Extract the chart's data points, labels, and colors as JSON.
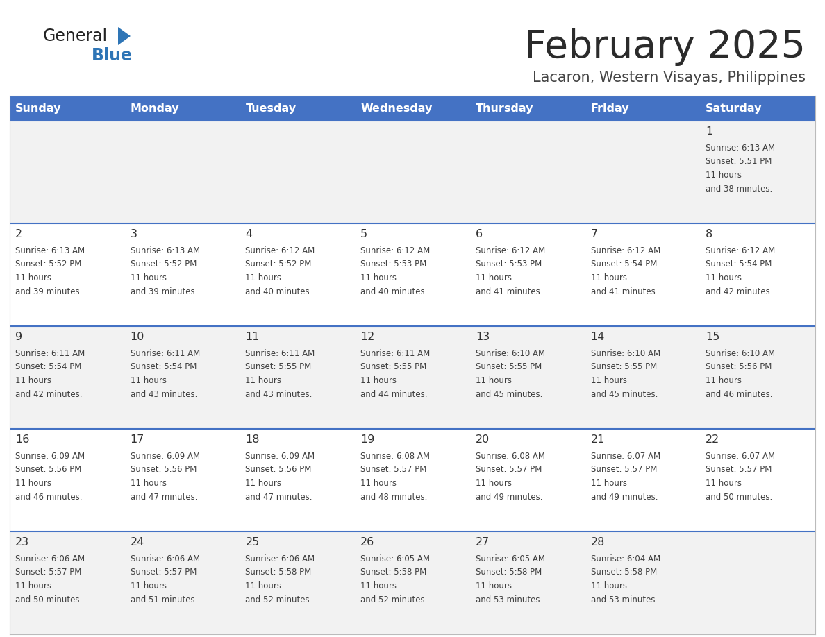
{
  "title": "February 2025",
  "subtitle": "Lacaron, Western Visayas, Philippines",
  "header_bg": "#4472C4",
  "header_text_color": "#FFFFFF",
  "day_names": [
    "Sunday",
    "Monday",
    "Tuesday",
    "Wednesday",
    "Thursday",
    "Friday",
    "Saturday"
  ],
  "row_bg_odd": "#F2F2F2",
  "row_bg_even": "#FFFFFF",
  "row_separator_color": "#4472C4",
  "cell_text_color": "#404040",
  "day_num_color": "#333333",
  "logo_general_color": "#222222",
  "logo_blue_color": "#2E75B6",
  "logo_triangle_color": "#2E75B6",
  "border_color": "#BBBBBB",
  "calendar": [
    [
      {
        "day": null
      },
      {
        "day": null
      },
      {
        "day": null
      },
      {
        "day": null
      },
      {
        "day": null
      },
      {
        "day": null
      },
      {
        "day": 1,
        "sunrise": "6:13 AM",
        "sunset": "5:51 PM",
        "daylight": "11 hours and 38 minutes."
      }
    ],
    [
      {
        "day": 2,
        "sunrise": "6:13 AM",
        "sunset": "5:52 PM",
        "daylight": "11 hours and 39 minutes."
      },
      {
        "day": 3,
        "sunrise": "6:13 AM",
        "sunset": "5:52 PM",
        "daylight": "11 hours and 39 minutes."
      },
      {
        "day": 4,
        "sunrise": "6:12 AM",
        "sunset": "5:52 PM",
        "daylight": "11 hours and 40 minutes."
      },
      {
        "day": 5,
        "sunrise": "6:12 AM",
        "sunset": "5:53 PM",
        "daylight": "11 hours and 40 minutes."
      },
      {
        "day": 6,
        "sunrise": "6:12 AM",
        "sunset": "5:53 PM",
        "daylight": "11 hours and 41 minutes."
      },
      {
        "day": 7,
        "sunrise": "6:12 AM",
        "sunset": "5:54 PM",
        "daylight": "11 hours and 41 minutes."
      },
      {
        "day": 8,
        "sunrise": "6:12 AM",
        "sunset": "5:54 PM",
        "daylight": "11 hours and 42 minutes."
      }
    ],
    [
      {
        "day": 9,
        "sunrise": "6:11 AM",
        "sunset": "5:54 PM",
        "daylight": "11 hours and 42 minutes."
      },
      {
        "day": 10,
        "sunrise": "6:11 AM",
        "sunset": "5:54 PM",
        "daylight": "11 hours and 43 minutes."
      },
      {
        "day": 11,
        "sunrise": "6:11 AM",
        "sunset": "5:55 PM",
        "daylight": "11 hours and 43 minutes."
      },
      {
        "day": 12,
        "sunrise": "6:11 AM",
        "sunset": "5:55 PM",
        "daylight": "11 hours and 44 minutes."
      },
      {
        "day": 13,
        "sunrise": "6:10 AM",
        "sunset": "5:55 PM",
        "daylight": "11 hours and 45 minutes."
      },
      {
        "day": 14,
        "sunrise": "6:10 AM",
        "sunset": "5:55 PM",
        "daylight": "11 hours and 45 minutes."
      },
      {
        "day": 15,
        "sunrise": "6:10 AM",
        "sunset": "5:56 PM",
        "daylight": "11 hours and 46 minutes."
      }
    ],
    [
      {
        "day": 16,
        "sunrise": "6:09 AM",
        "sunset": "5:56 PM",
        "daylight": "11 hours and 46 minutes."
      },
      {
        "day": 17,
        "sunrise": "6:09 AM",
        "sunset": "5:56 PM",
        "daylight": "11 hours and 47 minutes."
      },
      {
        "day": 18,
        "sunrise": "6:09 AM",
        "sunset": "5:56 PM",
        "daylight": "11 hours and 47 minutes."
      },
      {
        "day": 19,
        "sunrise": "6:08 AM",
        "sunset": "5:57 PM",
        "daylight": "11 hours and 48 minutes."
      },
      {
        "day": 20,
        "sunrise": "6:08 AM",
        "sunset": "5:57 PM",
        "daylight": "11 hours and 49 minutes."
      },
      {
        "day": 21,
        "sunrise": "6:07 AM",
        "sunset": "5:57 PM",
        "daylight": "11 hours and 49 minutes."
      },
      {
        "day": 22,
        "sunrise": "6:07 AM",
        "sunset": "5:57 PM",
        "daylight": "11 hours and 50 minutes."
      }
    ],
    [
      {
        "day": 23,
        "sunrise": "6:06 AM",
        "sunset": "5:57 PM",
        "daylight": "11 hours and 50 minutes."
      },
      {
        "day": 24,
        "sunrise": "6:06 AM",
        "sunset": "5:57 PM",
        "daylight": "11 hours and 51 minutes."
      },
      {
        "day": 25,
        "sunrise": "6:06 AM",
        "sunset": "5:58 PM",
        "daylight": "11 hours and 52 minutes."
      },
      {
        "day": 26,
        "sunrise": "6:05 AM",
        "sunset": "5:58 PM",
        "daylight": "11 hours and 52 minutes."
      },
      {
        "day": 27,
        "sunrise": "6:05 AM",
        "sunset": "5:58 PM",
        "daylight": "11 hours and 53 minutes."
      },
      {
        "day": 28,
        "sunrise": "6:04 AM",
        "sunset": "5:58 PM",
        "daylight": "11 hours and 53 minutes."
      },
      {
        "day": null
      }
    ]
  ]
}
